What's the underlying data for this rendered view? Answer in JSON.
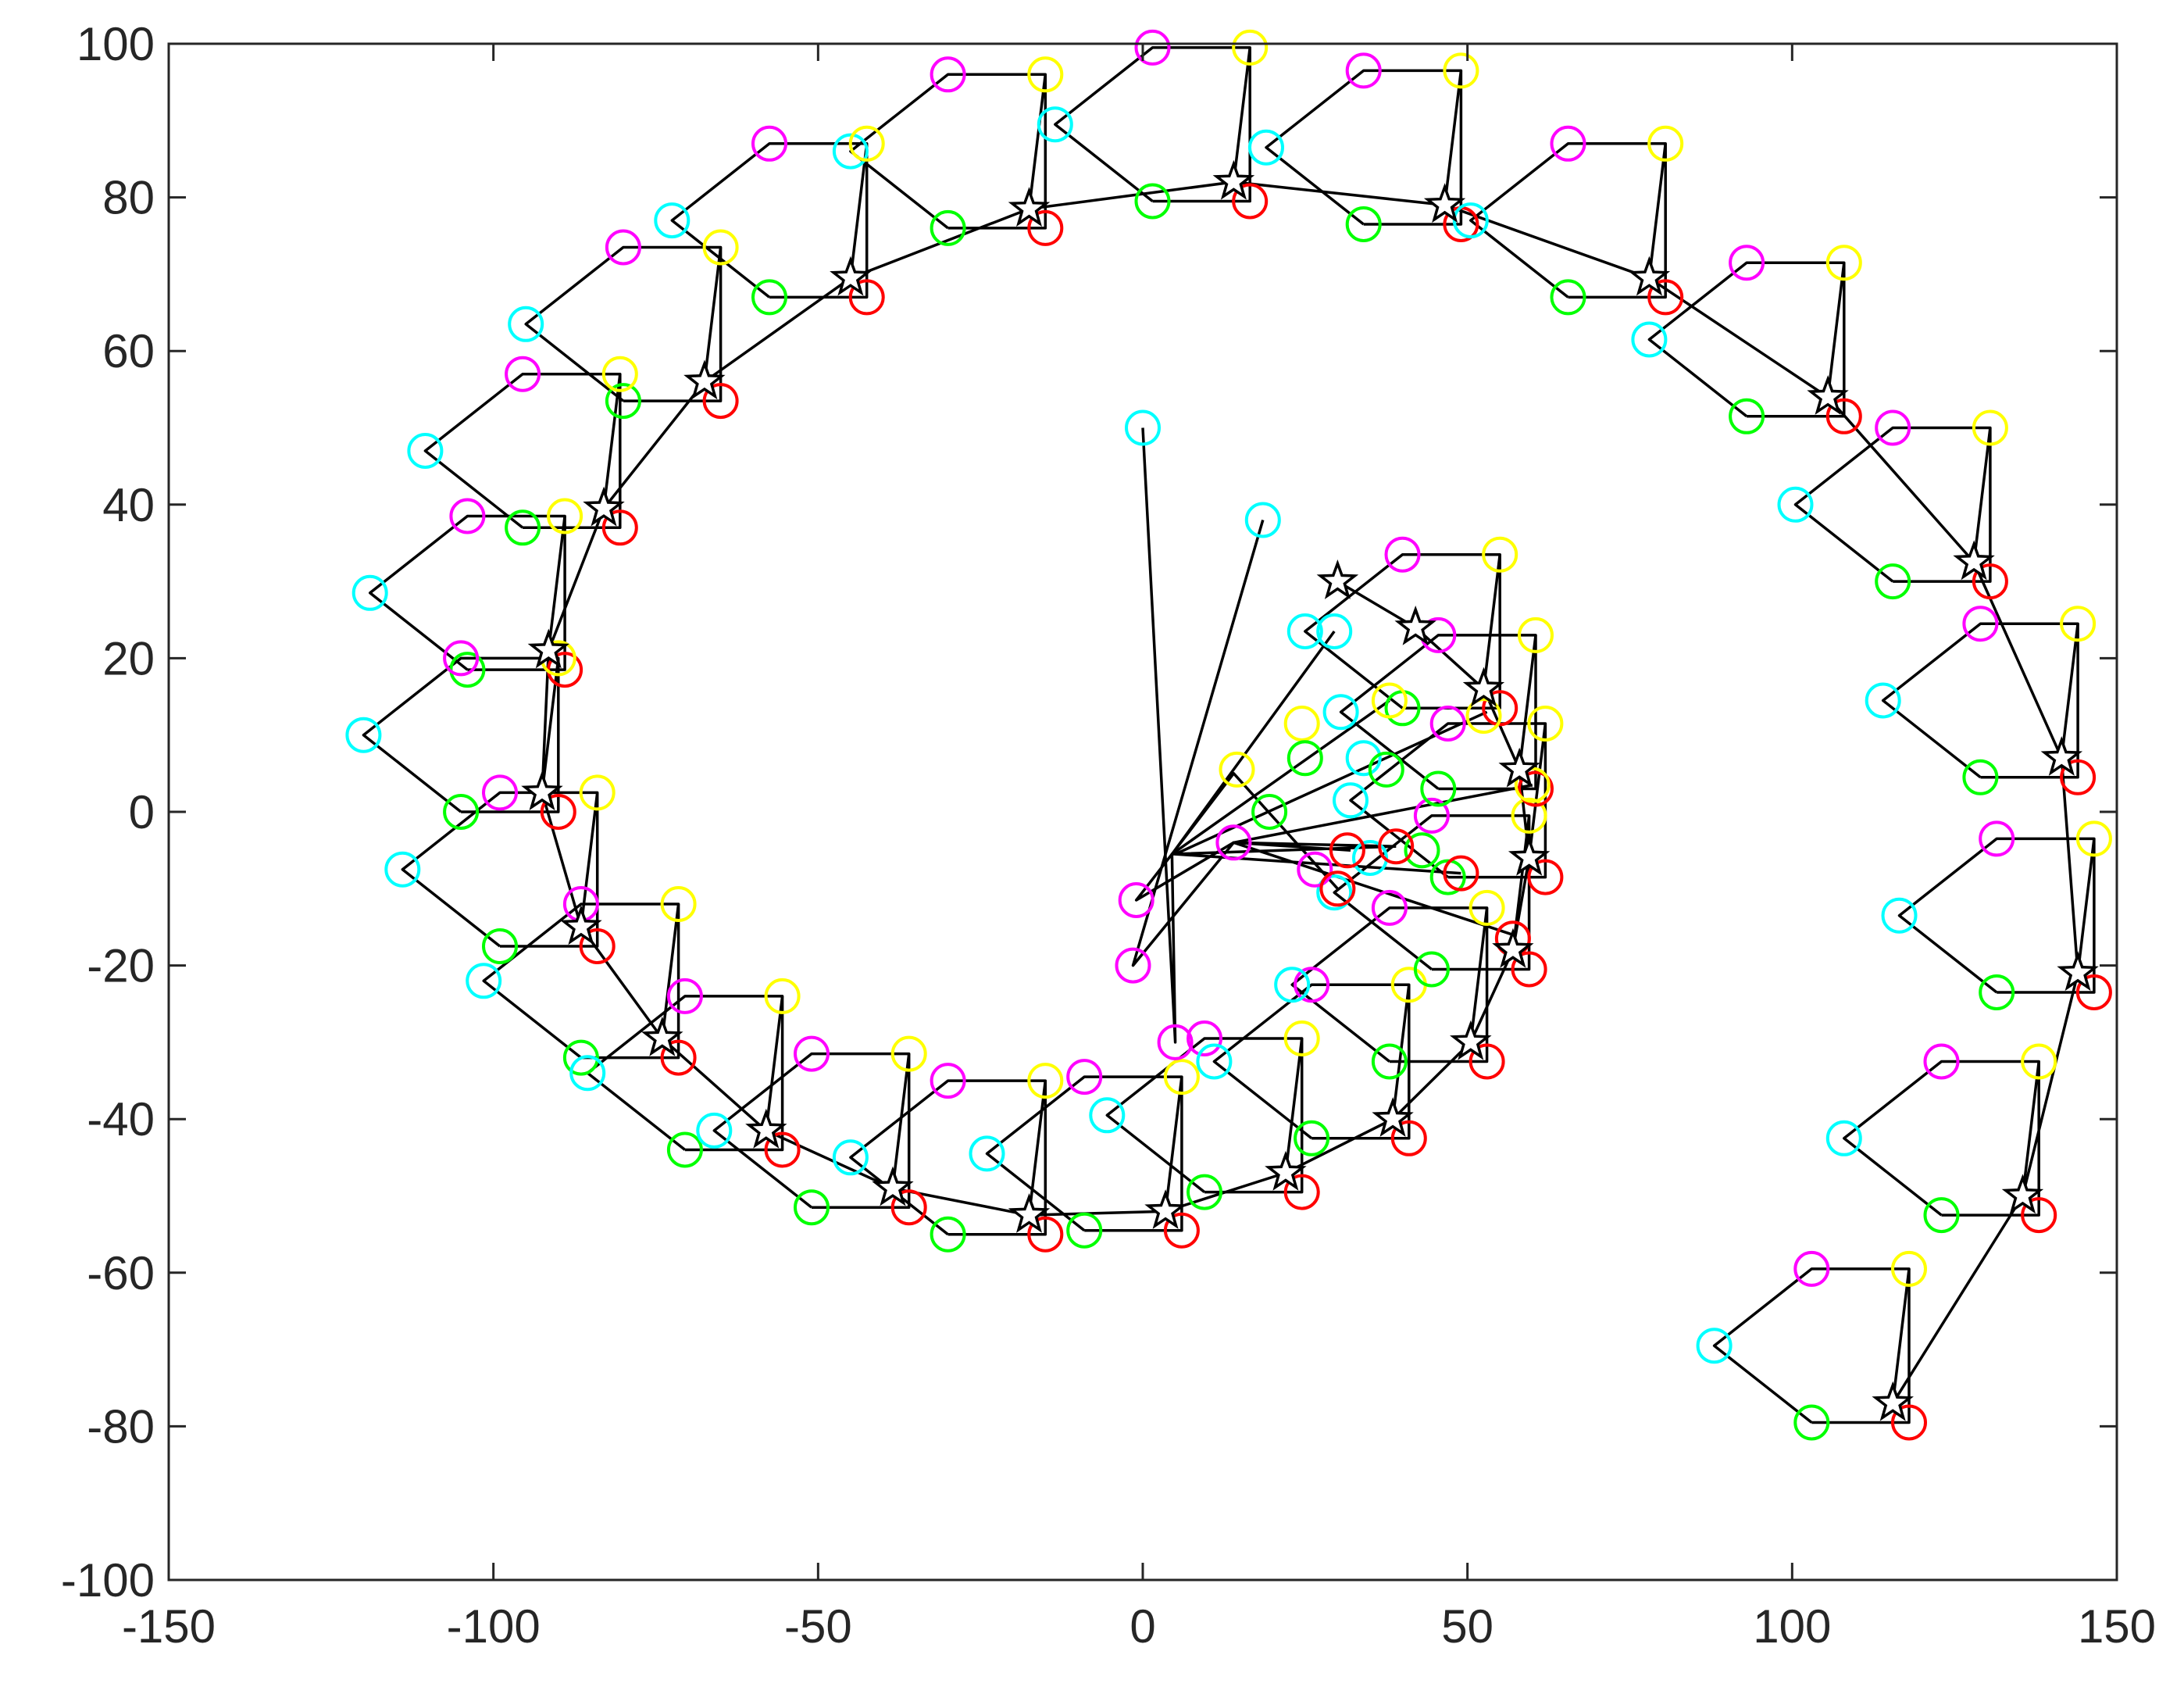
{
  "chart_data": {
    "type": "line",
    "title": "",
    "xlabel": "",
    "ylabel": "",
    "xlim": [
      -150,
      150
    ],
    "ylim": [
      -100,
      100
    ],
    "xticks": [
      -150,
      -100,
      -50,
      0,
      50,
      100,
      150
    ],
    "yticks": [
      -100,
      -80,
      -60,
      -40,
      -20,
      0,
      20,
      40,
      60,
      80,
      100
    ],
    "grid": false,
    "legend": "none",
    "colors": {
      "magenta": "#ff00ff",
      "yellow": "#ffff00",
      "red": "#ff0000",
      "green": "#00ff00",
      "cyan": "#00ffff",
      "line": "#000000"
    },
    "formation": {
      "order": [
        "magenta",
        "yellow",
        "red",
        "green",
        "cyan"
      ],
      "offsets": [
        [
          -12.5,
          17.5
        ],
        [
          2.5,
          17.5
        ],
        [
          2.5,
          -2.5
        ],
        [
          -12.5,
          -2.5
        ],
        [
          -27.5,
          7.5
        ]
      ]
    },
    "formation_centers": [
      [
        14,
        82
      ],
      [
        -17.5,
        78.5
      ],
      [
        -45,
        69.5
      ],
      [
        -67.5,
        56
      ],
      [
        -83,
        39.5
      ],
      [
        -91.5,
        21
      ],
      [
        -92.5,
        2.5
      ],
      [
        -86.5,
        -15
      ],
      [
        -74,
        -29.5
      ],
      [
        -58,
        -41.5
      ],
      [
        -38.5,
        -49
      ],
      [
        -17.5,
        -52.5
      ],
      [
        3.5,
        -52
      ],
      [
        22,
        -47
      ],
      [
        38.5,
        -40
      ],
      [
        50.5,
        -30
      ],
      [
        57,
        -18
      ],
      [
        59.5,
        -6
      ],
      [
        58,
        5.5
      ],
      [
        52.5,
        16
      ],
      [
        46.5,
        79
      ],
      [
        78,
        69.5
      ],
      [
        105.5,
        54
      ],
      [
        128,
        32.5
      ],
      [
        141.5,
        7
      ],
      [
        144,
        -21
      ],
      [
        135.5,
        -50
      ],
      [
        115.5,
        -77
      ]
    ],
    "leader_path": [
      [
        30,
        30
      ],
      [
        42,
        24
      ],
      [
        52.5,
        16
      ],
      [
        58,
        5.5
      ],
      [
        59.5,
        -6
      ],
      [
        57,
        -18
      ],
      [
        50.5,
        -30
      ],
      [
        38.5,
        -40
      ],
      [
        22,
        -47
      ],
      [
        3.5,
        -52
      ],
      [
        -17.5,
        -52.5
      ],
      [
        -38.5,
        -49
      ],
      [
        -58,
        -41.5
      ],
      [
        -74,
        -29.5
      ],
      [
        -86.5,
        -15
      ],
      [
        -92.5,
        2.5
      ],
      [
        -91.5,
        21
      ],
      [
        -83,
        39.5
      ],
      [
        -67.5,
        56
      ],
      [
        -45,
        69.5
      ],
      [
        -17.5,
        78.5
      ],
      [
        14,
        82
      ],
      [
        46.5,
        79
      ],
      [
        78,
        69.5
      ],
      [
        105.5,
        54
      ],
      [
        128,
        32.5
      ],
      [
        141.5,
        7
      ],
      [
        144,
        -21
      ],
      [
        135.5,
        -50
      ],
      [
        115.5,
        -77
      ]
    ],
    "extra_stars": [
      [
        30,
        30
      ],
      [
        42,
        24
      ]
    ],
    "initial_positions": [
      {
        "color": "cyan",
        "x": 0,
        "y": 50
      },
      {
        "color": "cyan",
        "x": 18.5,
        "y": 38
      },
      {
        "color": "cyan",
        "x": 29.5,
        "y": 23.5
      },
      {
        "color": "cyan",
        "x": 34,
        "y": 7
      },
      {
        "color": "cyan",
        "x": 35,
        "y": -6
      },
      {
        "color": "magenta",
        "x": -1,
        "y": -11.5
      },
      {
        "color": "magenta",
        "x": -1.5,
        "y": -20
      },
      {
        "color": "magenta",
        "x": 5,
        "y": -30
      },
      {
        "color": "magenta",
        "x": 26.5,
        "y": -7.5
      },
      {
        "color": "magenta",
        "x": 14,
        "y": -4
      },
      {
        "color": "yellow",
        "x": 24.5,
        "y": 11.5
      },
      {
        "color": "yellow",
        "x": 38,
        "y": 14.5
      },
      {
        "color": "yellow",
        "x": 14.5,
        "y": 5.5
      },
      {
        "color": "yellow",
        "x": 52.5,
        "y": 12.5
      },
      {
        "color": "yellow",
        "x": 60,
        "y": 3.5
      },
      {
        "color": "green",
        "x": 25,
        "y": 7
      },
      {
        "color": "green",
        "x": 37.5,
        "y": 5.5
      },
      {
        "color": "green",
        "x": 19.5,
        "y": 0
      },
      {
        "color": "green",
        "x": 43,
        "y": -5
      },
      {
        "color": "red",
        "x": 31.5,
        "y": -5
      },
      {
        "color": "red",
        "x": 39,
        "y": -4.5
      },
      {
        "color": "red",
        "x": 30,
        "y": -10
      },
      {
        "color": "red",
        "x": 49,
        "y": -8
      },
      {
        "color": "red",
        "x": 57,
        "y": -16.5
      }
    ],
    "convergence_paths": [
      [
        [
          0,
          50
        ],
        [
          5,
          -30
        ],
        [
          4.5,
          -5.5
        ],
        [
          -1,
          -11.5
        ],
        [
          14,
          -4
        ],
        [
          32,
          -5
        ]
      ],
      [
        [
          18.5,
          38
        ],
        [
          -1.5,
          -20
        ],
        [
          14,
          -4
        ],
        [
          39,
          -4.5
        ]
      ],
      [
        [
          29.5,
          23.5
        ],
        [
          4.5,
          -5.5
        ],
        [
          14,
          5
        ],
        [
          30,
          -10
        ]
      ],
      [
        [
          38,
          14.5
        ],
        [
          4.5,
          -5.5
        ],
        [
          39,
          -4.5
        ]
      ],
      [
        [
          53,
          13
        ],
        [
          5,
          -5.5
        ],
        [
          49,
          -8
        ]
      ],
      [
        [
          60,
          3.5
        ],
        [
          14,
          -4
        ],
        [
          57,
          -16
        ]
      ]
    ]
  }
}
